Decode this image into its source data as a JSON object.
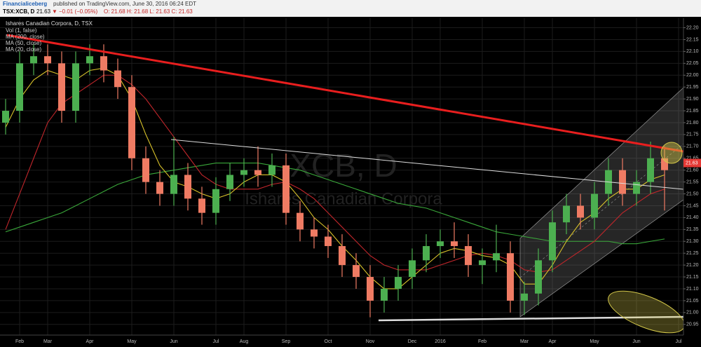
{
  "header": {
    "author": "Financialiceberg",
    "published": "published on TradingView.com, June 30, 2016 06:24 EDT",
    "symbol": "TSX:XCB, D",
    "last": "21.63",
    "arrow": "▼",
    "change": "−0.01 (−0.05%)",
    "ohlc": "O: 21.68 H: 21.68 L: 21.63 C: 21.63"
  },
  "chart_data": {
    "type": "candlestick",
    "title": "Ishares Canadian Corpora, D, TSX",
    "watermark": "XCB, D",
    "watermark_name": "Ishares Canadian Corpora",
    "indicators": [
      "Vol (1, false)",
      "MA (200, close)",
      "MA (50, close)",
      "MA (20, close)"
    ],
    "categories": [
      null,
      "Feb",
      null,
      "Mar",
      null,
      null,
      "Apr",
      null,
      null,
      "May",
      null,
      null,
      "Jun",
      null,
      null,
      "Jul",
      null,
      "Aug",
      null,
      null,
      "Sep",
      null,
      null,
      "Oct",
      null,
      null,
      "Nov",
      null,
      null,
      "Dec",
      null,
      "2016",
      null,
      null,
      "Feb",
      null,
      null,
      "Mar",
      null,
      "Apr",
      null,
      null,
      "May",
      null,
      null,
      "Jun",
      null,
      null,
      "Jul"
    ],
    "open": [
      21.8,
      21.85,
      22.05,
      22.08,
      22.05,
      21.85,
      22.05,
      22.08,
      22.02,
      21.95,
      21.65,
      21.55,
      21.5,
      21.58,
      21.48,
      21.42,
      21.52,
      21.58,
      21.6,
      21.58,
      21.62,
      21.42,
      21.35,
      21.32,
      21.28,
      21.2,
      21.15,
      21.05,
      21.1,
      21.15,
      21.22,
      21.28,
      21.3,
      21.28,
      21.2,
      21.22,
      21.25,
      21.05,
      21.08,
      21.22,
      21.38,
      21.45,
      21.4,
      21.5,
      21.6,
      21.5,
      21.55,
      21.65,
      null
    ],
    "high": [
      21.9,
      22.1,
      22.13,
      22.13,
      22.1,
      22.1,
      22.13,
      22.13,
      22.07,
      22.0,
      21.7,
      21.6,
      21.74,
      21.63,
      21.53,
      21.57,
      21.63,
      21.65,
      21.7,
      21.67,
      21.67,
      21.47,
      21.4,
      21.37,
      21.33,
      21.25,
      21.2,
      21.15,
      21.2,
      21.27,
      21.33,
      21.35,
      21.38,
      21.33,
      21.27,
      21.37,
      21.3,
      21.13,
      21.27,
      21.43,
      21.5,
      21.5,
      21.55,
      21.65,
      21.65,
      21.6,
      21.72,
      21.7,
      null
    ],
    "low": [
      21.75,
      21.8,
      22.0,
      22.0,
      21.8,
      21.8,
      22.0,
      21.97,
      21.9,
      21.6,
      21.5,
      21.45,
      21.45,
      21.43,
      21.37,
      21.37,
      21.47,
      21.53,
      21.53,
      21.53,
      21.37,
      21.3,
      21.27,
      21.23,
      21.15,
      21.1,
      20.98,
      21.0,
      21.05,
      21.1,
      21.17,
      21.23,
      21.23,
      21.15,
      21.12,
      21.17,
      21.0,
      20.99,
      21.03,
      21.17,
      21.33,
      21.35,
      21.35,
      21.45,
      21.45,
      21.45,
      21.5,
      21.43,
      null
    ],
    "close": [
      21.85,
      22.05,
      22.08,
      22.05,
      21.85,
      22.05,
      22.08,
      22.02,
      21.95,
      21.65,
      21.55,
      21.5,
      21.58,
      21.48,
      21.42,
      21.52,
      21.58,
      21.6,
      21.58,
      21.62,
      21.42,
      21.35,
      21.32,
      21.28,
      21.2,
      21.15,
      21.05,
      21.1,
      21.15,
      21.22,
      21.28,
      21.3,
      21.28,
      21.2,
      21.22,
      21.25,
      21.05,
      21.08,
      21.22,
      21.38,
      21.45,
      21.4,
      21.5,
      21.6,
      21.5,
      21.55,
      21.65,
      21.6,
      null
    ],
    "up_color": "#4caf50",
    "down_color": "#ef7b63",
    "series": [
      {
        "name": "MA (200, close)",
        "color": "#3aa83a",
        "values": [
          21.34,
          21.36,
          21.38,
          21.4,
          21.42,
          21.45,
          21.48,
          21.51,
          21.54,
          21.56,
          21.58,
          21.59,
          21.6,
          21.61,
          21.62,
          21.63,
          21.63,
          21.63,
          21.63,
          21.62,
          21.61,
          21.6,
          21.58,
          21.56,
          21.54,
          21.52,
          21.5,
          21.48,
          21.46,
          21.45,
          21.44,
          21.42,
          21.4,
          21.38,
          21.36,
          21.34,
          21.33,
          21.32,
          21.31,
          21.3,
          21.3,
          21.3,
          21.3,
          21.3,
          21.29,
          21.29,
          21.3,
          21.31,
          null
        ]
      },
      {
        "name": "MA (50, close)",
        "color": "#c0262b",
        "values": [
          21.35,
          21.5,
          21.65,
          21.8,
          21.88,
          21.92,
          21.96,
          22.0,
          22.0,
          21.96,
          21.9,
          21.82,
          21.74,
          21.66,
          21.58,
          21.54,
          21.52,
          21.52,
          21.52,
          21.54,
          21.55,
          21.52,
          21.48,
          21.42,
          21.36,
          21.3,
          21.24,
          21.2,
          21.18,
          21.18,
          21.18,
          21.2,
          21.22,
          21.24,
          21.25,
          21.24,
          21.22,
          21.18,
          21.17,
          21.18,
          21.22,
          21.26,
          21.3,
          21.36,
          21.42,
          21.46,
          21.5,
          21.52,
          null
        ]
      },
      {
        "name": "MA (20, close)",
        "color": "#d8c22a",
        "values": [
          21.78,
          21.9,
          21.98,
          22.02,
          22.0,
          21.98,
          22.02,
          22.03,
          22.0,
          21.9,
          21.75,
          21.62,
          21.55,
          21.53,
          21.5,
          21.48,
          21.5,
          21.55,
          21.58,
          21.58,
          21.55,
          21.48,
          21.4,
          21.35,
          21.28,
          21.22,
          21.15,
          21.1,
          21.1,
          21.15,
          21.2,
          21.25,
          21.27,
          21.26,
          21.24,
          21.23,
          21.2,
          21.12,
          21.12,
          21.2,
          21.3,
          21.38,
          21.42,
          21.48,
          21.52,
          21.52,
          21.56,
          21.58,
          null
        ]
      }
    ],
    "last_price": 21.63,
    "last_color": "#e53935",
    "ylim": [
      20.905,
      22.24
    ],
    "yticks": [
      {
        "value": 20.95,
        "label": "20.95"
      },
      {
        "value": 21,
        "label": "21.00"
      },
      {
        "value": 21.05,
        "label": "21.05"
      },
      {
        "value": 21.1,
        "label": "21.10"
      },
      {
        "value": 21.15,
        "label": "21.15"
      },
      {
        "value": 21.2,
        "label": "21.20"
      },
      {
        "value": 21.25,
        "label": "21.25"
      },
      {
        "value": 21.3,
        "label": "21.30"
      },
      {
        "value": 21.35,
        "label": "21.35"
      },
      {
        "value": 21.4,
        "label": "21.40"
      },
      {
        "value": 21.45,
        "label": "21.45"
      },
      {
        "value": 21.5,
        "label": "21.50"
      },
      {
        "value": 21.55,
        "label": "21.55"
      },
      {
        "value": 21.6,
        "label": "21.60"
      },
      {
        "value": 21.65,
        "label": "21.65"
      },
      {
        "value": 21.7,
        "label": "21.70"
      },
      {
        "value": 21.75,
        "label": "21.75"
      },
      {
        "value": 21.8,
        "label": "21.80"
      },
      {
        "value": 21.85,
        "label": "21.85"
      },
      {
        "value": 21.9,
        "label": "21.90"
      },
      {
        "value": 21.95,
        "label": "21.95"
      },
      {
        "value": 22,
        "label": "22.00"
      },
      {
        "value": 22.05,
        "label": "22.05"
      },
      {
        "value": 22.1,
        "label": "22.10"
      },
      {
        "value": 22.15,
        "label": "22.15"
      },
      {
        "value": 22.2,
        "label": "22.20"
      }
    ],
    "grid": true
  }
}
